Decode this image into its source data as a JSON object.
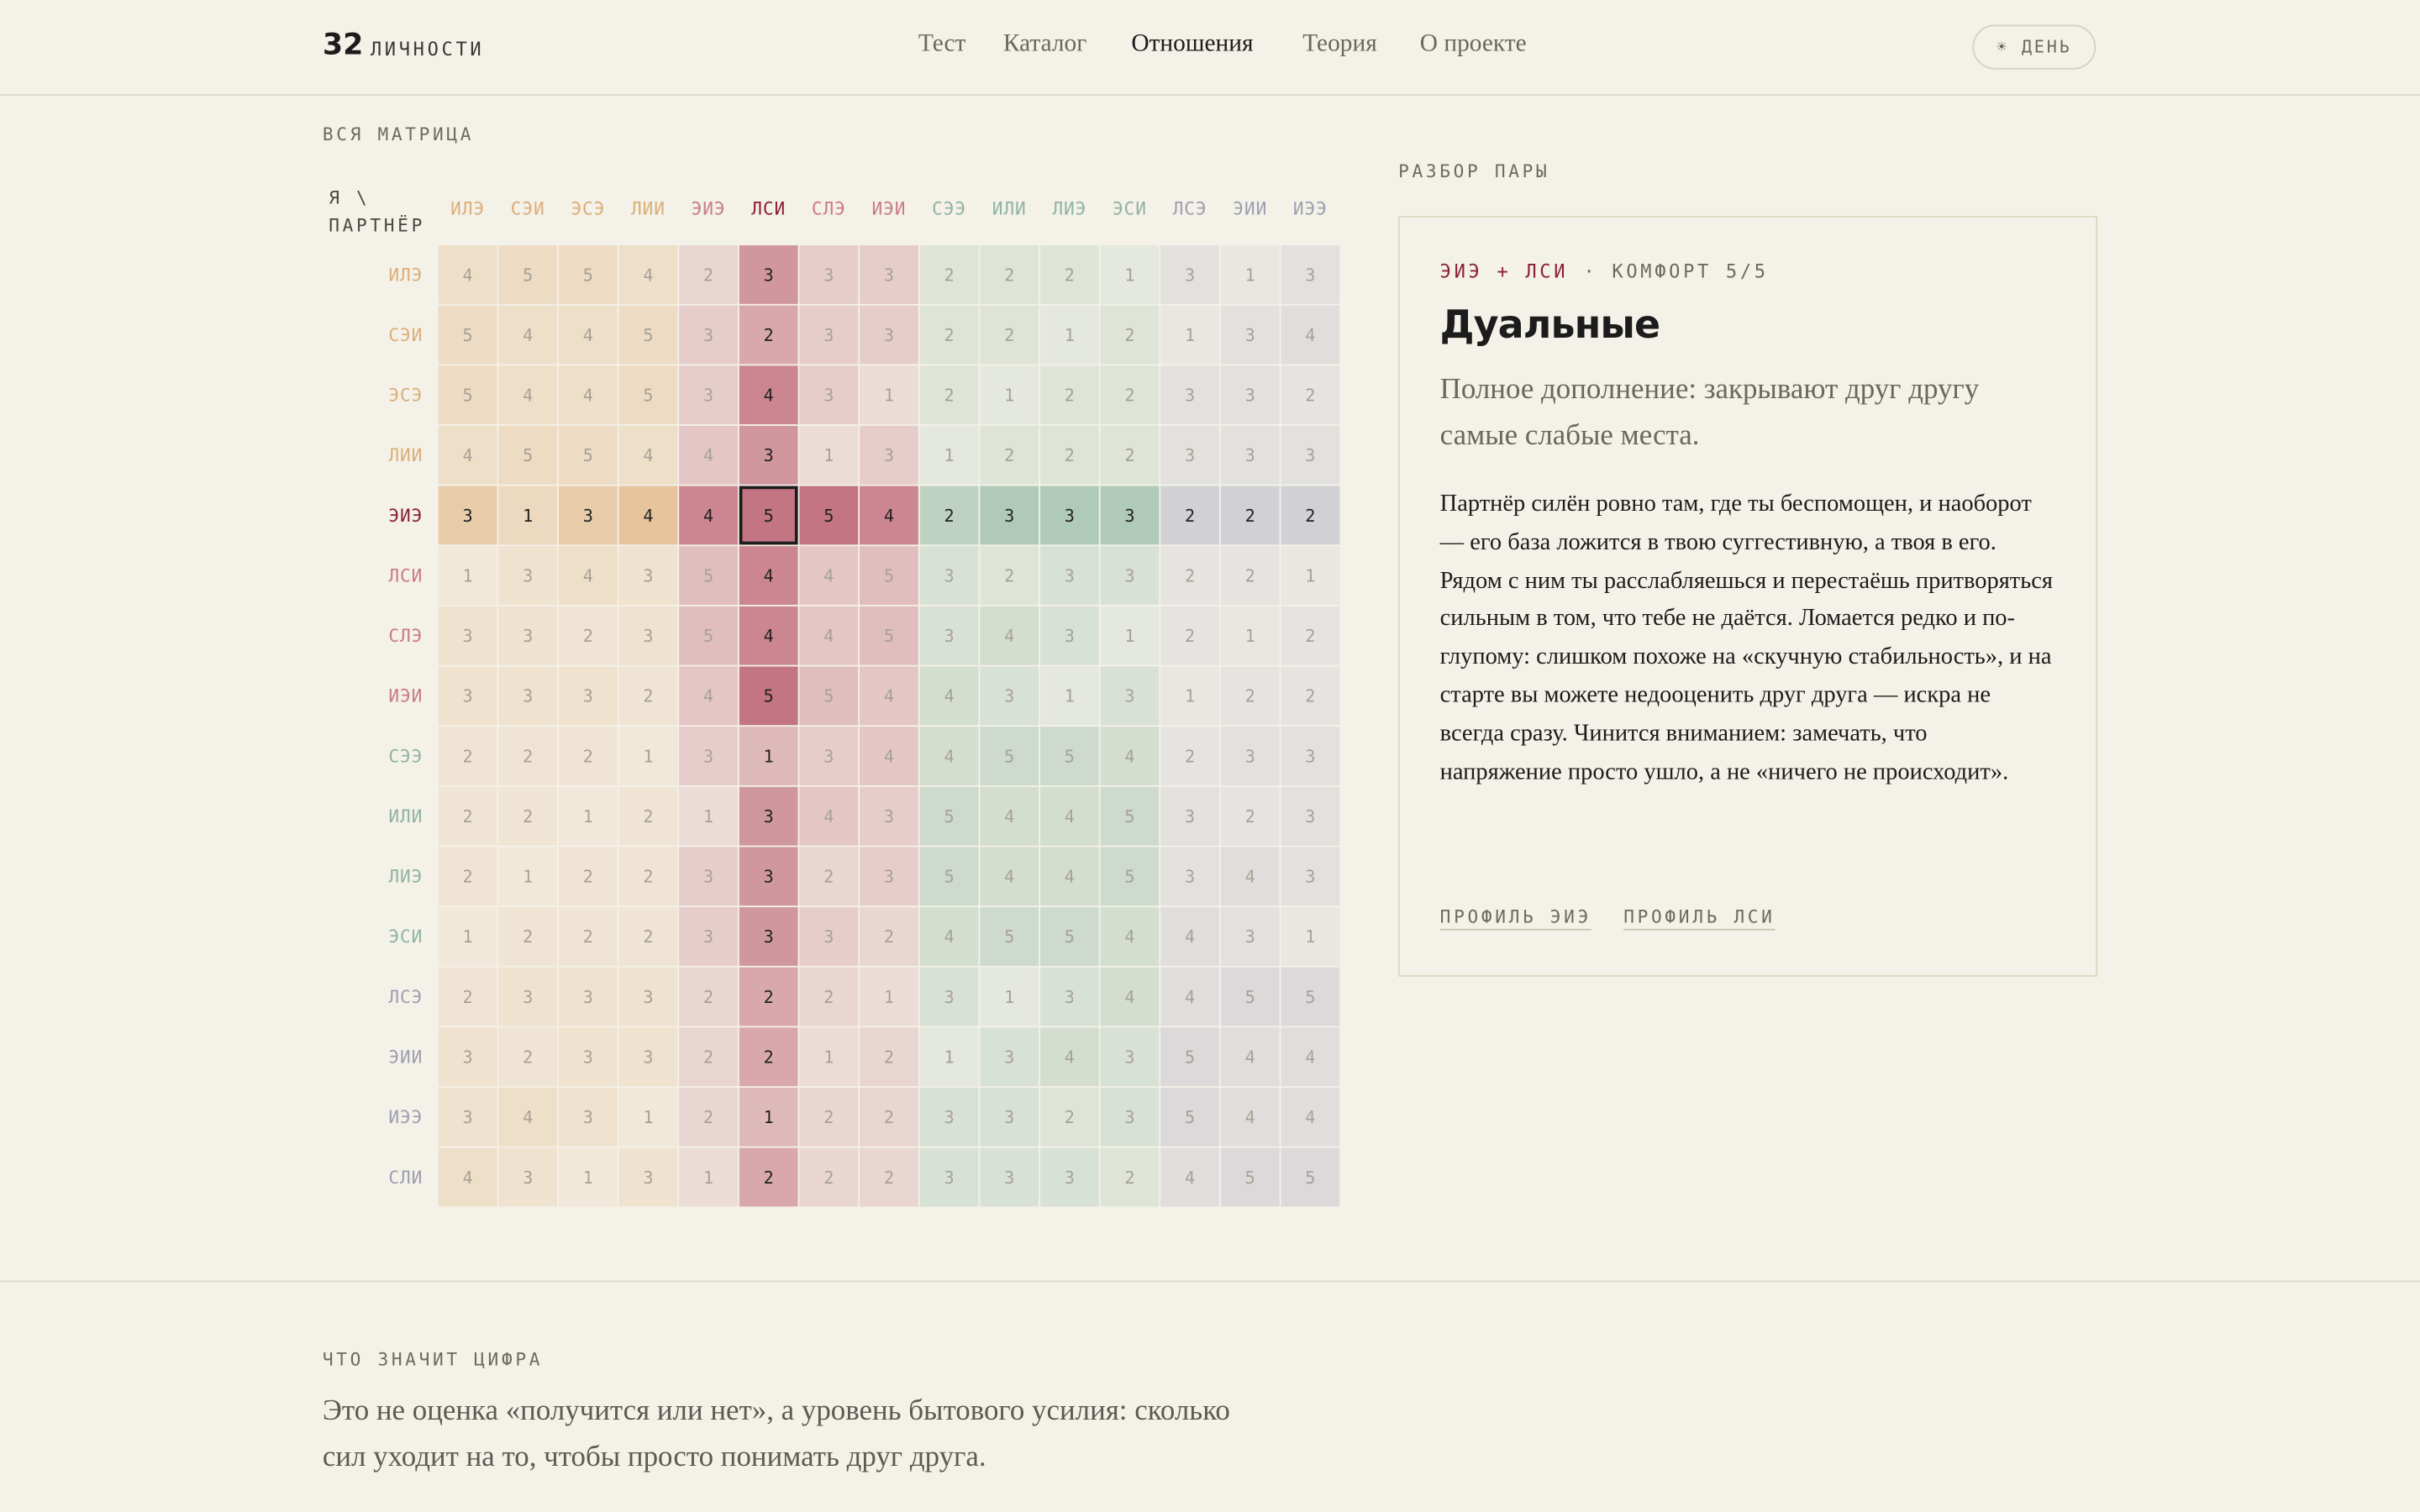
{
  "header": {
    "logo_number": "32",
    "logo_text": "ЛИЧНОСТИ",
    "nav": [
      "Тест",
      "Каталог",
      "Отношения",
      "Теория",
      "О проекте"
    ],
    "theme_button": "☀ ДЕНЬ"
  },
  "matrix": {
    "title": "ВСЯ МАТРИЦА",
    "corner": [
      "Я \\",
      "ПАРТНЁР"
    ],
    "columns": [
      "ИЛЭ",
      "СЭИ",
      "ЭСЭ",
      "ЛИИ",
      "ЭИЭ",
      "ЛСИ",
      "СЛЭ",
      "ИЭИ",
      "СЭЭ",
      "ИЛИ",
      "ЛИЭ",
      "ЭСИ",
      "ЛСЭ",
      "ЭИИ",
      "ИЭЭ"
    ],
    "rows": [
      {
        "label": "ИЛЭ",
        "values": [
          4,
          5,
          5,
          4,
          2,
          3,
          3,
          3,
          2,
          2,
          2,
          1,
          3,
          1,
          3
        ]
      },
      {
        "label": "СЭИ",
        "values": [
          5,
          4,
          4,
          5,
          3,
          2,
          3,
          3,
          2,
          2,
          1,
          2,
          1,
          3,
          4
        ]
      },
      {
        "label": "ЭСЭ",
        "values": [
          5,
          4,
          4,
          5,
          3,
          4,
          3,
          1,
          2,
          1,
          2,
          2,
          3,
          3,
          2
        ]
      },
      {
        "label": "ЛИИ",
        "values": [
          4,
          5,
          5,
          4,
          4,
          3,
          1,
          3,
          1,
          2,
          2,
          2,
          3,
          3,
          3
        ]
      },
      {
        "label": "ЭИЭ",
        "values": [
          3,
          1,
          3,
          4,
          4,
          5,
          5,
          4,
          2,
          3,
          3,
          3,
          2,
          2,
          2
        ]
      },
      {
        "label": "ЛСИ",
        "values": [
          1,
          3,
          4,
          3,
          5,
          4,
          4,
          5,
          3,
          2,
          3,
          3,
          2,
          2,
          1
        ]
      },
      {
        "label": "СЛЭ",
        "values": [
          3,
          3,
          2,
          3,
          5,
          4,
          4,
          5,
          3,
          4,
          3,
          1,
          2,
          1,
          2
        ]
      },
      {
        "label": "ИЭИ",
        "values": [
          3,
          3,
          3,
          2,
          4,
          5,
          5,
          4,
          4,
          3,
          1,
          3,
          1,
          2,
          2
        ]
      },
      {
        "label": "СЭЭ",
        "values": [
          2,
          2,
          2,
          1,
          3,
          1,
          3,
          4,
          4,
          5,
          5,
          4,
          2,
          3,
          3
        ]
      },
      {
        "label": "ИЛИ",
        "values": [
          2,
          2,
          1,
          2,
          1,
          3,
          4,
          3,
          5,
          4,
          4,
          5,
          3,
          2,
          3
        ]
      },
      {
        "label": "ЛИЭ",
        "values": [
          2,
          1,
          2,
          2,
          3,
          3,
          2,
          3,
          5,
          4,
          4,
          5,
          3,
          4,
          3
        ]
      },
      {
        "label": "ЭСИ",
        "values": [
          1,
          2,
          2,
          2,
          3,
          3,
          3,
          2,
          4,
          5,
          5,
          4,
          4,
          3,
          1
        ]
      },
      {
        "label": "ЛСЭ",
        "values": [
          2,
          3,
          3,
          3,
          2,
          2,
          2,
          1,
          3,
          1,
          3,
          4,
          4,
          5,
          5
        ]
      },
      {
        "label": "ЭИИ",
        "values": [
          3,
          2,
          3,
          3,
          2,
          2,
          1,
          2,
          1,
          3,
          4,
          3,
          5,
          4,
          4
        ]
      },
      {
        "label": "ИЭЭ",
        "values": [
          3,
          4,
          3,
          1,
          2,
          1,
          2,
          2,
          3,
          3,
          2,
          3,
          5,
          4,
          4
        ]
      },
      {
        "label": "СЛИ",
        "values": [
          4,
          3,
          1,
          3,
          1,
          2,
          2,
          2,
          3,
          3,
          3,
          2,
          4,
          5,
          5
        ]
      }
    ]
  },
  "detail": {
    "title": "РАЗБОР ПАРЫ",
    "pair": "ЭИЭ + ЛСИ",
    "comfort": "· КОМФОРТ 5/5",
    "name": "Дуальные",
    "summary": "Полное дополнение: закрывают друг другу самые слабые места.",
    "body": "Партнёр силён ровно там, где ты беспомощен, и наоборот — его база ложится в твою суггестивную, а твоя в его. Рядом с ним ты расслабляешься и перестаёшь притворяться сильным в том, что тебе не даётся. Ломается редко и по-глупому: слишком похоже на «скучную стабильность», и на старте вы можете недооценить друг друга — искра не всегда сразу. Чинится вниманием: замечать, что напряжение просто ушло, а не «ничего не происходит».",
    "links": [
      "ПРОФИЛЬ ЭИЭ",
      "ПРОФИЛЬ ЛСИ"
    ]
  },
  "explain": {
    "title": "ЧТО ЗНАЧИТ ЦИФРА",
    "text": "Это не оценка «получится или нет», а уровень бытового усилия: сколько сил уходит на то, чтобы просто понимать друг друга."
  }
}
